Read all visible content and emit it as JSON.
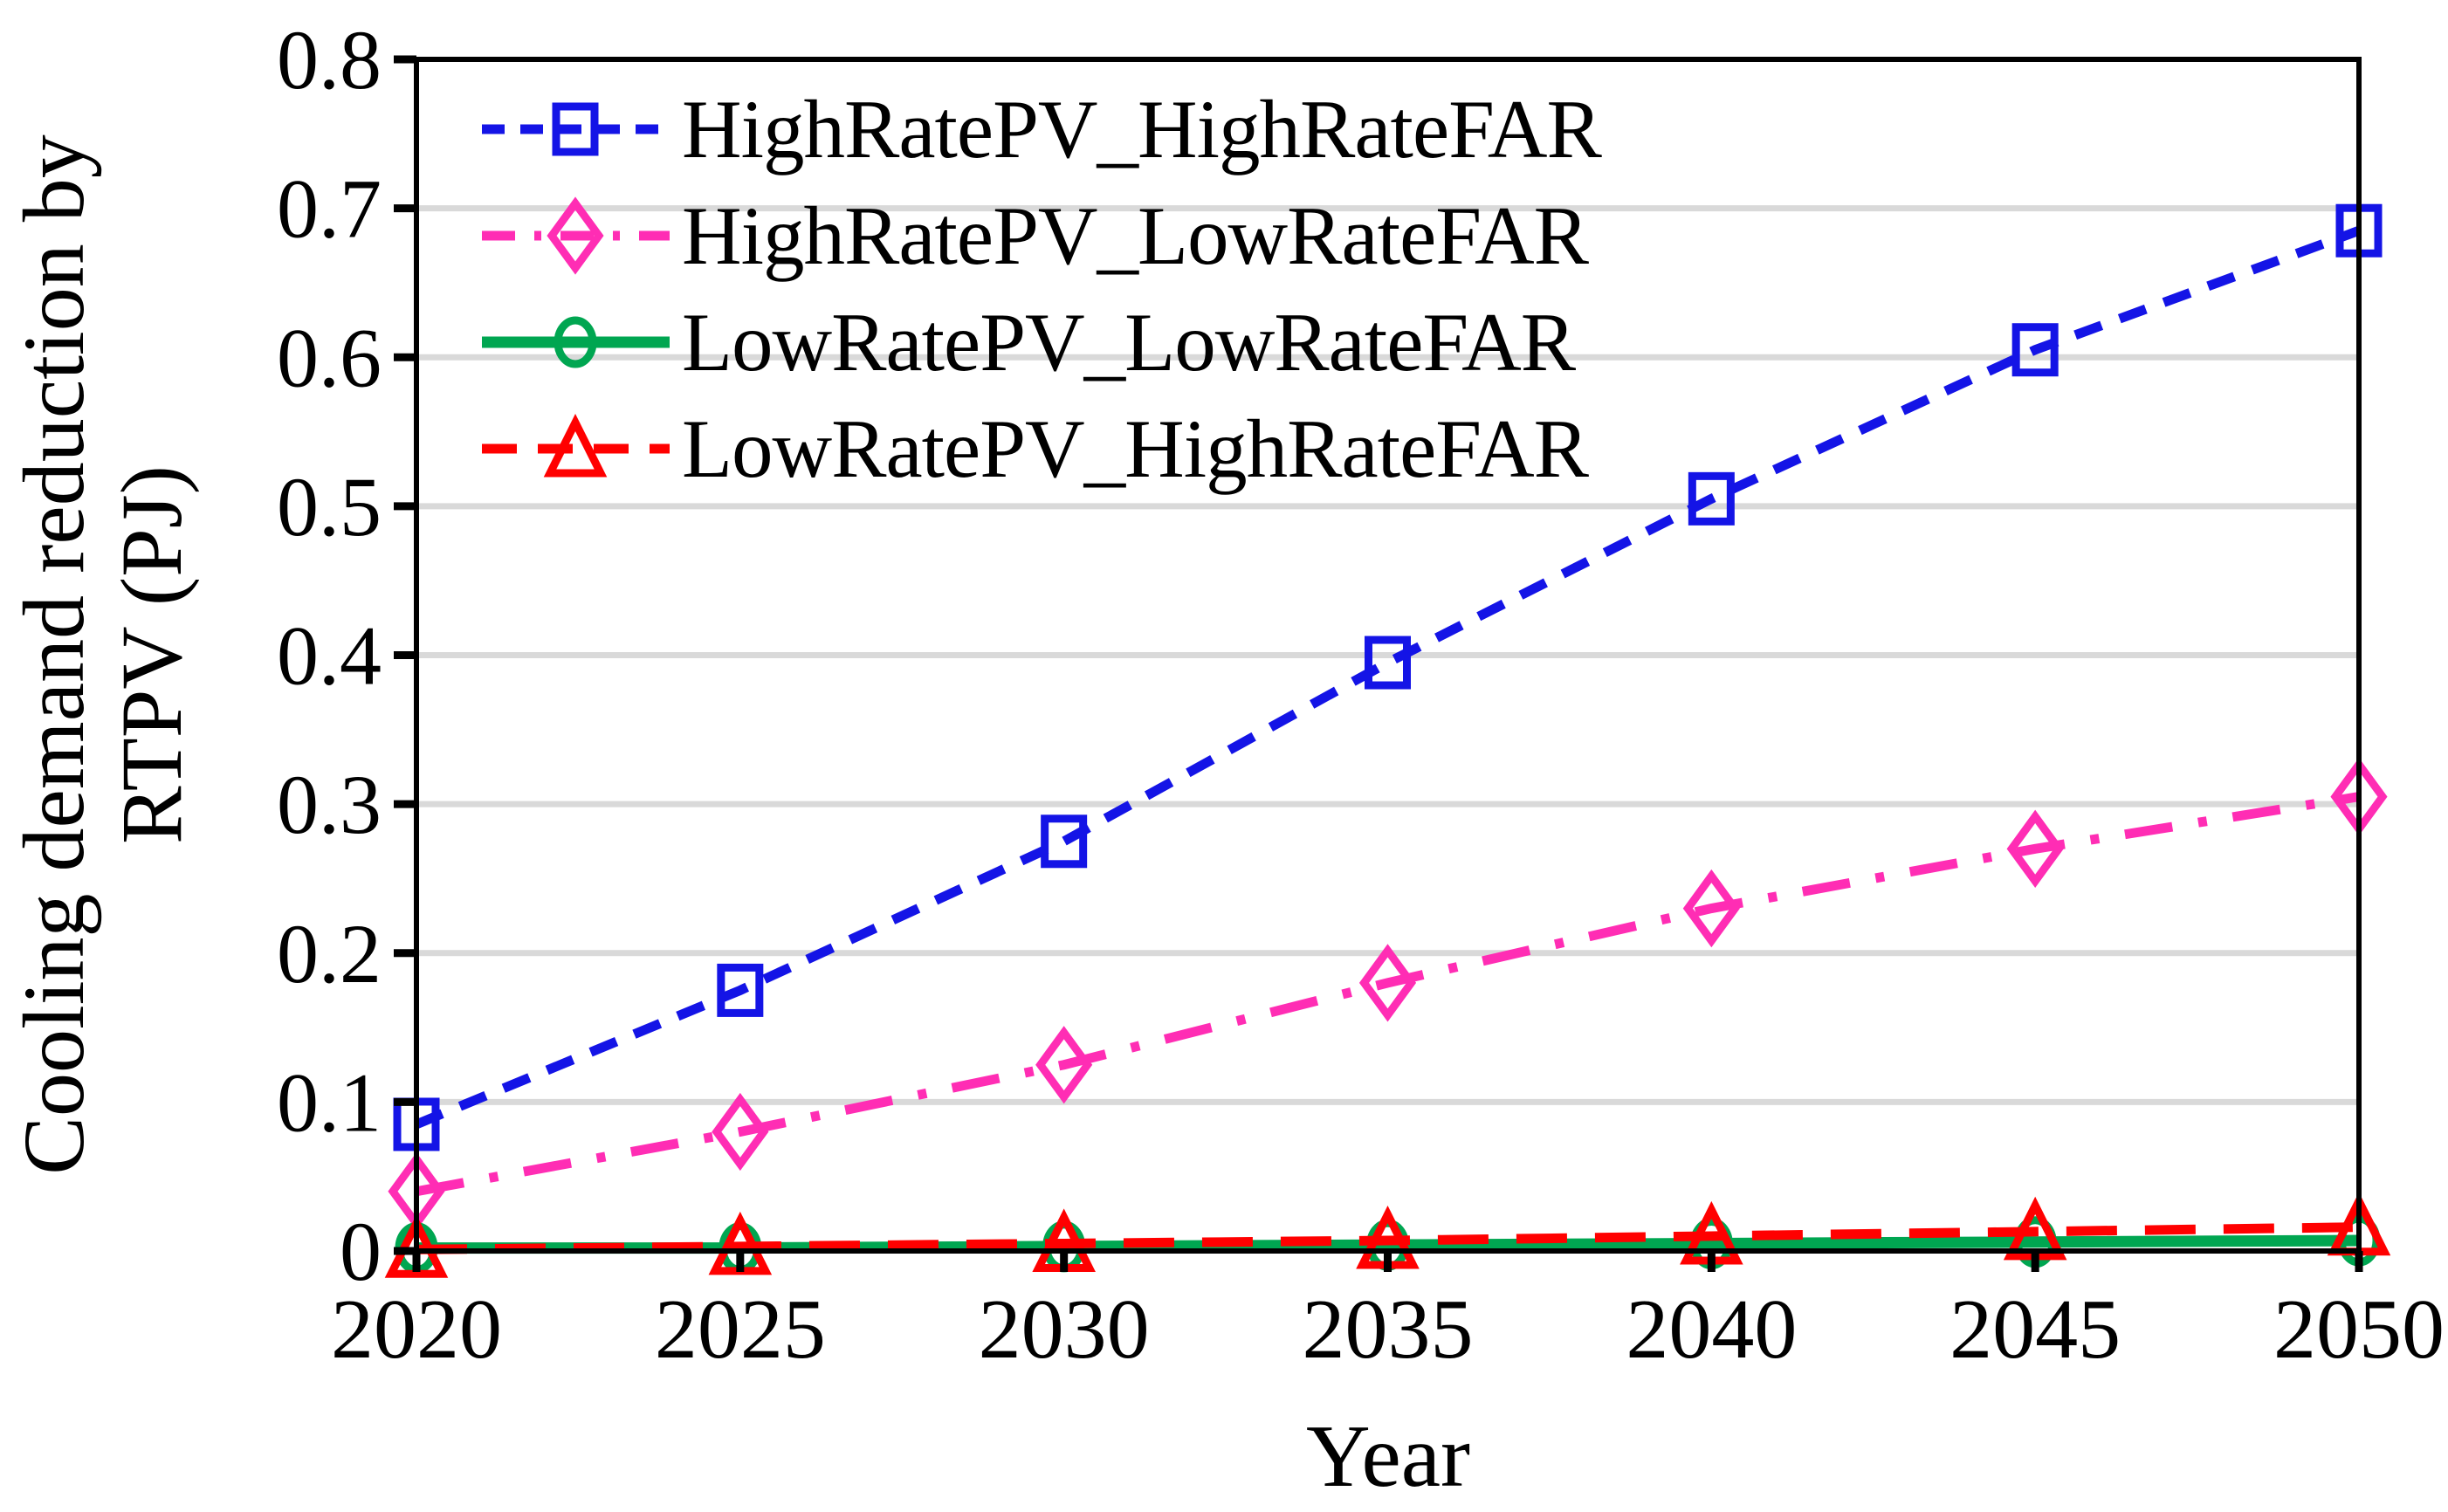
{
  "chart_data": {
    "type": "line",
    "x": [
      2020,
      2025,
      2030,
      2035,
      2040,
      2045,
      2050
    ],
    "xticks": [
      "2020",
      "2025",
      "2030",
      "2035",
      "2040",
      "2045",
      "2050"
    ],
    "yticks": [
      "0",
      "0.1",
      "0.2",
      "0.3",
      "0.4",
      "0.5",
      "0.6",
      "0.7",
      "0.8"
    ],
    "xlabel": "Year",
    "ylabel": "Cooling demand reduction by RTPV (PJ)",
    "ylabel_line1": "Cooling demand reduction by",
    "ylabel_line2": "RTPV (PJ)",
    "xlim": [
      2020,
      2050
    ],
    "ylim": [
      0,
      0.8
    ],
    "grid": "horizontal",
    "grid_color": "#D9D9D9",
    "axis_color": "#000000",
    "legend_position": "top-left-inside",
    "series": [
      {
        "name": "HighRatePV_HighRateFAR",
        "color": "#1414E6",
        "line_style": "dashed",
        "marker": "square",
        "values": [
          0.085,
          0.175,
          0.275,
          0.395,
          0.505,
          0.605,
          0.685
        ]
      },
      {
        "name": "HighRatePV_LowRateFAR",
        "color": "#FF2DB4",
        "line_style": "dash-dot",
        "marker": "diamond",
        "values": [
          0.04,
          0.08,
          0.125,
          0.18,
          0.23,
          0.27,
          0.305
        ]
      },
      {
        "name": "LowRatePV_LowRateFAR",
        "color": "#00A651",
        "line_style": "solid",
        "marker": "circle",
        "values": [
          0.002,
          0.002,
          0.003,
          0.004,
          0.005,
          0.006,
          0.007
        ]
      },
      {
        "name": "LowRatePV_HighRateFAR",
        "color": "#FF0000",
        "line_style": "dashed",
        "marker": "triangle",
        "values": [
          0.001,
          0.003,
          0.005,
          0.007,
          0.01,
          0.013,
          0.016
        ]
      }
    ]
  }
}
